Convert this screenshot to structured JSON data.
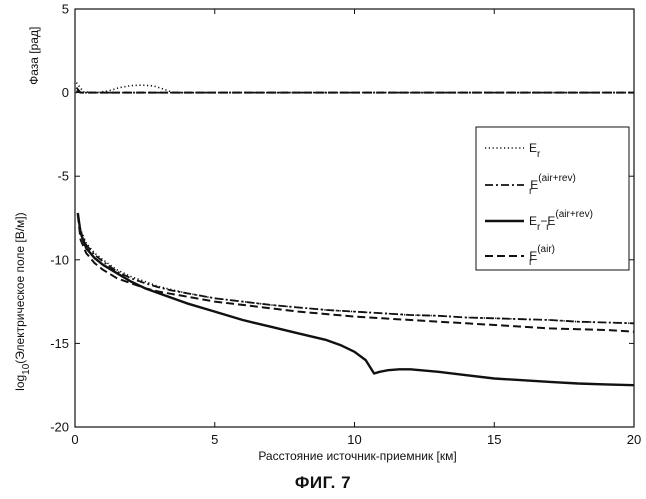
{
  "figure": {
    "caption": "ФИГ. 7"
  },
  "chart_data": {
    "type": "line",
    "xlabel": "Расстояние источник-приемник [км]",
    "xlim": [
      0,
      20
    ],
    "ylim": [
      -20,
      5
    ],
    "x_ticks": [
      "0",
      "5",
      "10",
      "15",
      "20"
    ],
    "y_ticks": [
      "5",
      "0",
      "-5",
      "-10",
      "-15",
      "-20"
    ],
    "x_tick_values": [
      0,
      5,
      10,
      15,
      20
    ],
    "y_tick_values": [
      5,
      0,
      -5,
      -10,
      -15,
      -20
    ],
    "ylabel_upper": "Фаза [рад]",
    "ylabel_lower": {
      "prefix": "log",
      "subscript": "10",
      "rest": "(Электрическое поле [В/м])"
    },
    "grid": false,
    "legend_position": "right",
    "legend": [
      {
        "base": "E",
        "sub": "r",
        "sup": "",
        "mid": "",
        "base2": "",
        "sub2": "",
        "sup2": "",
        "style": "dotted"
      },
      {
        "base": "E",
        "sub": "r",
        "sup": "(air+rev)",
        "mid": "",
        "base2": "",
        "sub2": "",
        "sup2": "",
        "style": "dashdot"
      },
      {
        "base": "E",
        "sub": "r",
        "sup": "",
        "mid": "−",
        "base2": "E",
        "sub2": "r",
        "sup2": "(air+rev)",
        "style": "solid"
      },
      {
        "base": "E",
        "sub": "r",
        "sup": "(air)",
        "mid": "",
        "base2": "",
        "sub2": "",
        "sup2": "",
        "style": "dashed"
      }
    ],
    "series": [
      {
        "style": "dotted",
        "x": [
          0.05,
          0.3,
          0.8,
          1.2,
          1.6,
          2.0,
          2.4,
          2.8,
          3.2,
          3.5,
          4.0,
          6.0,
          10.0,
          15.0,
          20.0
        ],
        "y": [
          0.6,
          0.05,
          0.0,
          0.1,
          0.3,
          0.42,
          0.45,
          0.4,
          0.2,
          0.0,
          0.0,
          0.0,
          0.0,
          0.0,
          0.0
        ]
      },
      {
        "style": "dashdot",
        "x": [
          0.05,
          0.2,
          0.5,
          1.0,
          2.0,
          5.0,
          10.0,
          15.0,
          20.0
        ],
        "y": [
          0.3,
          0.0,
          0.0,
          0.0,
          0.0,
          0.0,
          0.0,
          0.0,
          0.0
        ]
      },
      {
        "style": "dashed",
        "x": [
          0.05,
          0.2,
          0.5,
          1.0,
          2.0,
          5.0,
          10.0,
          15.0,
          20.0
        ],
        "y": [
          0.1,
          0.0,
          0.0,
          0.0,
          0.0,
          0.0,
          0.0,
          0.0,
          0.0
        ]
      },
      {
        "style": "dotted",
        "x": [
          0.1,
          0.2,
          0.4,
          0.7,
          1.0,
          1.5,
          2.0,
          2.5,
          3.0,
          3.5,
          4.0,
          5.0,
          6.0,
          7.0,
          8.0,
          9.0,
          10.0,
          11.0,
          12.0,
          13.0,
          14.0,
          15.0,
          16.0,
          17.0,
          18.0,
          19.0,
          20.0
        ],
        "y": [
          -7.2,
          -8.2,
          -9.0,
          -9.6,
          -10.0,
          -10.6,
          -11.0,
          -11.3,
          -11.6,
          -11.8,
          -12.0,
          -12.3,
          -12.5,
          -12.7,
          -12.85,
          -13.0,
          -13.1,
          -13.2,
          -13.3,
          -13.35,
          -13.45,
          -13.5,
          -13.55,
          -13.6,
          -13.7,
          -13.75,
          -13.8
        ]
      },
      {
        "style": "dashdot",
        "x": [
          0.1,
          0.2,
          0.4,
          0.7,
          1.0,
          1.5,
          2.0,
          2.5,
          3.0,
          3.5,
          4.0,
          5.0,
          6.0,
          7.0,
          8.0,
          9.0,
          10.0,
          11.0,
          12.0,
          13.0,
          14.0,
          15.0,
          16.0,
          17.0,
          18.0,
          19.0,
          20.0
        ],
        "y": [
          -7.2,
          -8.3,
          -9.1,
          -9.7,
          -10.1,
          -10.7,
          -11.1,
          -11.4,
          -11.65,
          -11.85,
          -12.0,
          -12.3,
          -12.5,
          -12.7,
          -12.85,
          -13.0,
          -13.1,
          -13.2,
          -13.3,
          -13.35,
          -13.45,
          -13.5,
          -13.55,
          -13.6,
          -13.7,
          -13.75,
          -13.8
        ]
      },
      {
        "style": "solid",
        "x": [
          0.1,
          0.2,
          0.4,
          0.7,
          1.0,
          1.5,
          2.0,
          2.5,
          3.0,
          4.0,
          5.0,
          6.0,
          7.0,
          8.0,
          9.0,
          9.5,
          10.0,
          10.4,
          10.7,
          10.9,
          11.2,
          11.6,
          12.0,
          13.0,
          14.0,
          15.0,
          16.0,
          17.0,
          18.0,
          19.0,
          20.0
        ],
        "y": [
          -7.2,
          -8.4,
          -9.3,
          -9.9,
          -10.3,
          -10.8,
          -11.3,
          -11.7,
          -12.0,
          -12.6,
          -13.1,
          -13.6,
          -14.0,
          -14.4,
          -14.8,
          -15.1,
          -15.5,
          -16.0,
          -16.8,
          -16.7,
          -16.6,
          -16.55,
          -16.55,
          -16.7,
          -16.9,
          -17.1,
          -17.2,
          -17.3,
          -17.4,
          -17.45,
          -17.5
        ]
      },
      {
        "style": "dashed",
        "x": [
          0.1,
          0.2,
          0.4,
          0.7,
          1.0,
          1.5,
          2.0,
          2.5,
          3.0,
          4.0,
          5.0,
          6.0,
          7.0,
          8.0,
          9.0,
          10.0,
          11.0,
          12.0,
          13.0,
          14.0,
          15.0,
          16.0,
          17.0,
          18.0,
          19.0,
          20.0
        ],
        "y": [
          -7.3,
          -8.8,
          -9.6,
          -10.2,
          -10.6,
          -11.1,
          -11.4,
          -11.7,
          -11.9,
          -12.2,
          -12.5,
          -12.7,
          -12.9,
          -13.1,
          -13.25,
          -13.4,
          -13.5,
          -13.6,
          -13.7,
          -13.8,
          -13.9,
          -14.0,
          -14.1,
          -14.15,
          -14.2,
          -14.3
        ]
      }
    ]
  }
}
